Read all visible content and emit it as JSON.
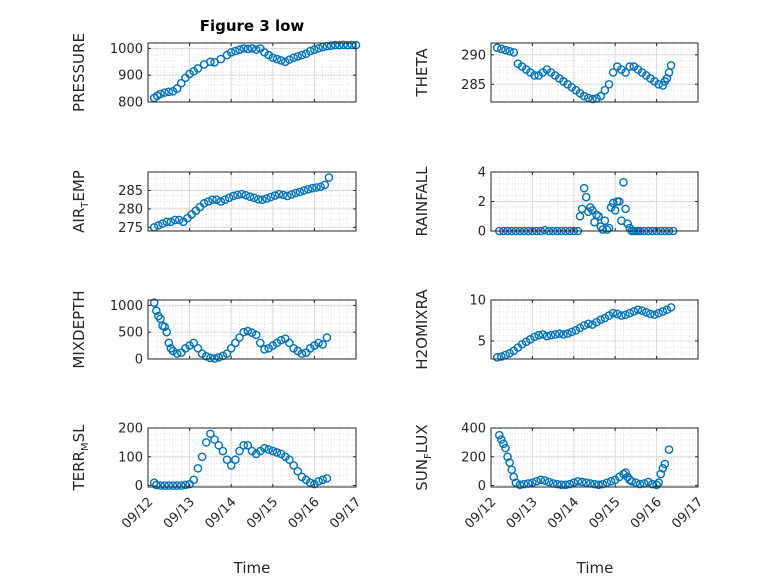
{
  "figure": {
    "title": "Figure 3 low",
    "xlabel": "Time",
    "x_tick_labels": [
      "09/12",
      "09/13",
      "09/14",
      "09/15",
      "09/16",
      "09/17"
    ],
    "marker_color": "#0072BD"
  },
  "chart_data": [
    {
      "type": "scatter",
      "ylabel_main": "PRESSURE",
      "ylabel_sub": "",
      "ylabel_tail": "",
      "xlim": [
        0,
        5
      ],
      "ylim": [
        800,
        1020
      ],
      "yticks": [
        800,
        900,
        1000
      ],
      "x": [
        0.15,
        0.22,
        0.3,
        0.4,
        0.5,
        0.6,
        0.7,
        0.8,
        0.9,
        1.0,
        1.1,
        1.2,
        1.35,
        1.5,
        1.6,
        1.75,
        1.9,
        2.0,
        2.1,
        2.2,
        2.3,
        2.4,
        2.5,
        2.6,
        2.7,
        2.8,
        2.9,
        3.0,
        3.1,
        3.2,
        3.3,
        3.4,
        3.5,
        3.6,
        3.7,
        3.8,
        3.9,
        4.0,
        4.1,
        4.2,
        4.3,
        4.4,
        4.5,
        4.6,
        4.7,
        4.8,
        4.9,
        5.0
      ],
      "y": [
        815,
        823,
        830,
        835,
        838,
        840,
        850,
        870,
        890,
        905,
        915,
        925,
        940,
        950,
        948,
        960,
        975,
        985,
        990,
        995,
        1000,
        998,
        1000,
        995,
        1000,
        985,
        975,
        965,
        960,
        955,
        950,
        958,
        965,
        970,
        975,
        980,
        990,
        995,
        1000,
        1005,
        1008,
        1010,
        1012,
        1012,
        1013,
        1012,
        1013,
        1012
      ]
    },
    {
      "type": "scatter",
      "ylabel_main": "THETA",
      "ylabel_sub": "",
      "ylabel_tail": "",
      "xlim": [
        0,
        5
      ],
      "ylim": [
        282,
        292
      ],
      "yticks": [
        285,
        290
      ],
      "x": [
        0.15,
        0.25,
        0.35,
        0.45,
        0.55,
        0.65,
        0.75,
        0.85,
        0.95,
        1.05,
        1.15,
        1.25,
        1.35,
        1.45,
        1.55,
        1.65,
        1.75,
        1.85,
        1.95,
        2.05,
        2.15,
        2.25,
        2.35,
        2.45,
        2.55,
        2.65,
        2.75,
        2.85,
        2.95,
        3.05,
        3.15,
        3.25,
        3.35,
        3.45,
        3.55,
        3.65,
        3.75,
        3.85,
        3.95,
        4.05,
        4.15,
        4.2,
        4.25,
        4.3,
        4.35
      ],
      "y": [
        291.2,
        291,
        290.8,
        290.6,
        290.4,
        288.5,
        288,
        287.5,
        287,
        286.5,
        286.5,
        287,
        287.5,
        287,
        286.5,
        286,
        285.5,
        285,
        284.5,
        284,
        283.5,
        283,
        282.7,
        282.5,
        282.6,
        283,
        284,
        285,
        287,
        288,
        287.5,
        287,
        288,
        288,
        287.5,
        287,
        286.5,
        286,
        285.5,
        285,
        284.8,
        285.5,
        286,
        287,
        288.2
      ]
    },
    {
      "type": "scatter",
      "ylabel_main": "AIR",
      "ylabel_sub": "T",
      "ylabel_tail": "EMP",
      "xlim": [
        0,
        5
      ],
      "ylim": [
        274,
        290
      ],
      "yticks": [
        275,
        280,
        285
      ],
      "x": [
        0.15,
        0.25,
        0.35,
        0.45,
        0.55,
        0.65,
        0.75,
        0.85,
        0.95,
        1.05,
        1.15,
        1.25,
        1.35,
        1.45,
        1.55,
        1.65,
        1.75,
        1.85,
        1.95,
        2.05,
        2.15,
        2.25,
        2.35,
        2.45,
        2.55,
        2.65,
        2.75,
        2.85,
        2.95,
        3.05,
        3.15,
        3.25,
        3.35,
        3.45,
        3.55,
        3.65,
        3.75,
        3.85,
        3.95,
        4.05,
        4.15,
        4.25,
        4.35
      ],
      "y": [
        275,
        275.5,
        276,
        276.5,
        276.5,
        277,
        277,
        276.5,
        277.5,
        278.5,
        279.5,
        280.5,
        281.5,
        282,
        282.5,
        282.5,
        282,
        282.5,
        283,
        283.5,
        283.8,
        284,
        283.7,
        283.3,
        283,
        282.6,
        282.5,
        282.8,
        283.2,
        283.6,
        284,
        283.8,
        283.5,
        283.9,
        284.3,
        284.6,
        285,
        285.3,
        285.6,
        285.8,
        286,
        286.5,
        288.5
      ]
    },
    {
      "type": "scatter",
      "ylabel_main": "RAINFALL",
      "ylabel_sub": "",
      "ylabel_tail": "",
      "xlim": [
        0,
        5
      ],
      "ylim": [
        0,
        4
      ],
      "yticks": [
        0,
        2,
        4
      ],
      "x": [
        0.2,
        0.3,
        0.4,
        0.5,
        0.6,
        0.7,
        0.8,
        0.9,
        1.0,
        1.1,
        1.2,
        1.3,
        1.4,
        1.5,
        1.6,
        1.7,
        1.8,
        1.9,
        2.0,
        2.1,
        2.15,
        2.2,
        2.25,
        2.3,
        2.35,
        2.4,
        2.45,
        2.5,
        2.55,
        2.6,
        2.65,
        2.7,
        2.75,
        2.8,
        2.85,
        2.9,
        2.95,
        3.0,
        3.05,
        3.1,
        3.15,
        3.2,
        3.25,
        3.3,
        3.35,
        3.4,
        3.45,
        3.5,
        3.55,
        3.6,
        3.7,
        3.8,
        3.9,
        4.0,
        4.1,
        4.2,
        4.3,
        4.4
      ],
      "y": [
        0,
        0,
        0,
        0,
        0,
        0,
        0,
        0,
        0,
        0,
        0,
        0.05,
        0,
        0,
        0,
        0,
        0,
        0,
        0,
        0,
        1.0,
        1.5,
        2.9,
        2.3,
        1.3,
        1.6,
        1.4,
        0.6,
        1.1,
        1.0,
        0.3,
        0.1,
        0.7,
        0.1,
        0.2,
        1.6,
        1.9,
        1.4,
        2.0,
        2.0,
        0.7,
        3.3,
        1.5,
        0.5,
        0.2,
        0,
        0,
        0,
        0,
        0,
        0,
        0,
        0,
        0,
        0,
        0,
        0,
        0
      ]
    },
    {
      "type": "scatter",
      "ylabel_main": "MIXDEPTH",
      "ylabel_sub": "",
      "ylabel_tail": "",
      "xlim": [
        0,
        5
      ],
      "ylim": [
        0,
        1100
      ],
      "yticks": [
        0,
        500,
        1000
      ],
      "x": [
        0.15,
        0.2,
        0.25,
        0.3,
        0.35,
        0.4,
        0.45,
        0.5,
        0.55,
        0.6,
        0.7,
        0.8,
        0.9,
        1.0,
        1.1,
        1.2,
        1.3,
        1.4,
        1.5,
        1.6,
        1.7,
        1.8,
        1.9,
        2.0,
        2.1,
        2.2,
        2.3,
        2.4,
        2.5,
        2.6,
        2.7,
        2.8,
        2.9,
        3.0,
        3.1,
        3.2,
        3.3,
        3.4,
        3.5,
        3.6,
        3.7,
        3.8,
        3.9,
        4.0,
        4.1,
        4.2,
        4.3
      ],
      "y": [
        1050,
        900,
        800,
        750,
        620,
        600,
        500,
        300,
        200,
        150,
        100,
        120,
        200,
        250,
        300,
        200,
        100,
        50,
        20,
        10,
        30,
        60,
        100,
        200,
        300,
        400,
        500,
        520,
        490,
        450,
        300,
        180,
        200,
        250,
        300,
        350,
        380,
        300,
        200,
        150,
        100,
        120,
        200,
        250,
        300,
        270,
        400
      ]
    },
    {
      "type": "scatter",
      "ylabel_main": "H2OMIXRA",
      "ylabel_sub": "",
      "ylabel_tail": "",
      "xlim": [
        0,
        5
      ],
      "ylim": [
        2.8,
        10
      ],
      "yticks": [
        5,
        10
      ],
      "x": [
        0.15,
        0.25,
        0.35,
        0.45,
        0.55,
        0.65,
        0.75,
        0.85,
        0.95,
        1.05,
        1.15,
        1.25,
        1.35,
        1.45,
        1.55,
        1.65,
        1.75,
        1.85,
        1.95,
        2.05,
        2.15,
        2.25,
        2.35,
        2.45,
        2.55,
        2.65,
        2.75,
        2.85,
        2.95,
        3.05,
        3.15,
        3.25,
        3.35,
        3.45,
        3.55,
        3.65,
        3.75,
        3.85,
        3.95,
        4.05,
        4.15,
        4.25,
        4.35
      ],
      "y": [
        3.0,
        3.1,
        3.3,
        3.5,
        3.8,
        4.2,
        4.6,
        4.9,
        5.2,
        5.5,
        5.7,
        5.8,
        5.6,
        5.7,
        5.8,
        5.9,
        5.8,
        5.9,
        6.1,
        6.3,
        6.6,
        6.9,
        7.1,
        7.0,
        7.3,
        7.6,
        7.8,
        8.1,
        8.4,
        8.3,
        8.1,
        8.2,
        8.4,
        8.6,
        8.8,
        8.7,
        8.5,
        8.3,
        8.2,
        8.4,
        8.6,
        8.8,
        9.1
      ]
    },
    {
      "type": "scatter",
      "ylabel_main": "TERR",
      "ylabel_sub": "M",
      "ylabel_tail": "SL",
      "xlim": [
        0,
        5
      ],
      "ylim": [
        -5,
        200
      ],
      "yticks": [
        0,
        100,
        200
      ],
      "x": [
        0.15,
        0.2,
        0.3,
        0.4,
        0.5,
        0.6,
        0.7,
        0.8,
        0.9,
        1.0,
        1.1,
        1.2,
        1.3,
        1.4,
        1.5,
        1.6,
        1.7,
        1.8,
        1.9,
        2.0,
        2.1,
        2.2,
        2.3,
        2.4,
        2.5,
        2.6,
        2.7,
        2.8,
        2.9,
        3.0,
        3.1,
        3.2,
        3.3,
        3.4,
        3.5,
        3.6,
        3.7,
        3.8,
        3.9,
        4.0,
        4.1,
        4.2,
        4.3
      ],
      "y": [
        10,
        2,
        0,
        0,
        0,
        0,
        0,
        0,
        2,
        5,
        20,
        60,
        100,
        150,
        180,
        160,
        140,
        120,
        90,
        70,
        90,
        120,
        140,
        140,
        120,
        110,
        120,
        130,
        125,
        120,
        115,
        110,
        100,
        90,
        70,
        50,
        30,
        20,
        10,
        5,
        15,
        20,
        25
      ]
    },
    {
      "type": "scatter",
      "ylabel_main": "SUN",
      "ylabel_sub": "F",
      "ylabel_tail": "LUX",
      "xlim": [
        0,
        5
      ],
      "ylim": [
        -10,
        400
      ],
      "yticks": [
        0,
        200,
        400
      ],
      "x": [
        0.2,
        0.25,
        0.3,
        0.35,
        0.4,
        0.45,
        0.5,
        0.55,
        0.6,
        0.7,
        0.8,
        0.9,
        1.0,
        1.1,
        1.2,
        1.3,
        1.4,
        1.5,
        1.6,
        1.7,
        1.8,
        1.9,
        2.0,
        2.1,
        2.2,
        2.3,
        2.4,
        2.5,
        2.6,
        2.7,
        2.8,
        2.9,
        3.0,
        3.1,
        3.2,
        3.25,
        3.3,
        3.35,
        3.4,
        3.5,
        3.6,
        3.7,
        3.8,
        3.9,
        4.0,
        4.05,
        4.1,
        4.15,
        4.2,
        4.3
      ],
      "y": [
        350,
        320,
        290,
        260,
        200,
        160,
        110,
        60,
        20,
        5,
        10,
        15,
        20,
        30,
        40,
        35,
        25,
        15,
        10,
        5,
        5,
        10,
        20,
        30,
        25,
        20,
        15,
        10,
        5,
        10,
        20,
        30,
        40,
        60,
        80,
        90,
        60,
        40,
        30,
        20,
        10,
        15,
        25,
        10,
        5,
        20,
        80,
        120,
        150,
        250
      ]
    }
  ]
}
